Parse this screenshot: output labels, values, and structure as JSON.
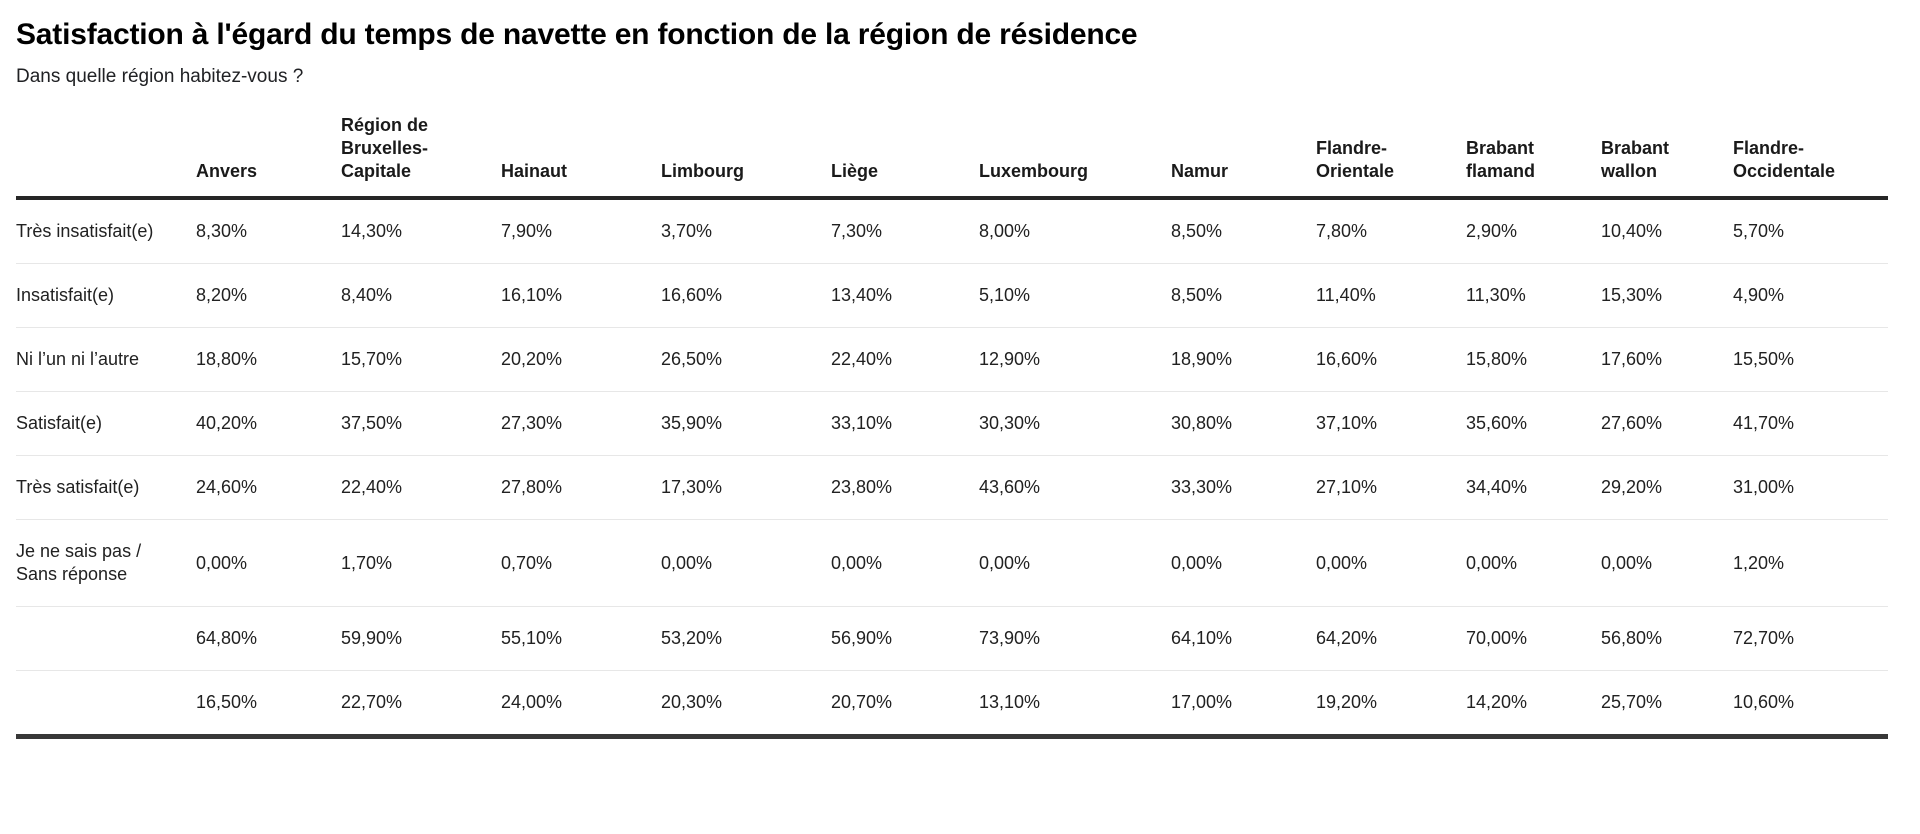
{
  "page": {
    "background": "#ffffff",
    "text_color": "#212121",
    "header_border_color": "#262626",
    "row_divider_color": "#e7e7e7"
  },
  "chart_data": {
    "type": "table",
    "title": "Satisfaction à l'égard du temps de navette en fonction de la région de résidence",
    "subtitle": "Dans quelle région habitez-vous ?",
    "columns": [
      "",
      "Anvers",
      "Région de Bruxelles-Capitale",
      "Hainaut",
      "Limbourg",
      "Liège",
      "Luxembourg",
      "Namur",
      "Flandre-Orientale",
      "Brabant flamand",
      "Brabant wallon",
      "Flandre-Occidentale"
    ],
    "rows": [
      {
        "label": "Très insatisfait(e)",
        "values": [
          "8,30%",
          "14,30%",
          "7,90%",
          "3,70%",
          "7,30%",
          "8,00%",
          "8,50%",
          "7,80%",
          "2,90%",
          "10,40%",
          "5,70%"
        ]
      },
      {
        "label": "Insatisfait(e)",
        "values": [
          "8,20%",
          "8,40%",
          "16,10%",
          "16,60%",
          "13,40%",
          "5,10%",
          "8,50%",
          "11,40%",
          "11,30%",
          "15,30%",
          "4,90%"
        ]
      },
      {
        "label": "Ni l’un ni l’autre",
        "values": [
          "18,80%",
          "15,70%",
          "20,20%",
          "26,50%",
          "22,40%",
          "12,90%",
          "18,90%",
          "16,60%",
          "15,80%",
          "17,60%",
          "15,50%"
        ]
      },
      {
        "label": "Satisfait(e)",
        "values": [
          "40,20%",
          "37,50%",
          "27,30%",
          "35,90%",
          "33,10%",
          "30,30%",
          "30,80%",
          "37,10%",
          "35,60%",
          "27,60%",
          "41,70%"
        ]
      },
      {
        "label": "Très satisfait(e)",
        "values": [
          "24,60%",
          "22,40%",
          "27,80%",
          "17,30%",
          "23,80%",
          "43,60%",
          "33,30%",
          "27,10%",
          "34,40%",
          "29,20%",
          "31,00%"
        ]
      },
      {
        "label": "Je ne sais pas / Sans réponse",
        "values": [
          "0,00%",
          "1,70%",
          "0,70%",
          "0,00%",
          "0,00%",
          "0,00%",
          "0,00%",
          "0,00%",
          "0,00%",
          "0,00%",
          "1,20%"
        ]
      },
      {
        "label": "",
        "values": [
          "64,80%",
          "59,90%",
          "55,10%",
          "53,20%",
          "56,90%",
          "73,90%",
          "64,10%",
          "64,20%",
          "70,00%",
          "56,80%",
          "72,70%"
        ]
      },
      {
        "label": "",
        "values": [
          "16,50%",
          "22,70%",
          "24,00%",
          "20,30%",
          "20,70%",
          "13,10%",
          "17,00%",
          "19,20%",
          "14,20%",
          "25,70%",
          "10,60%"
        ]
      }
    ]
  }
}
